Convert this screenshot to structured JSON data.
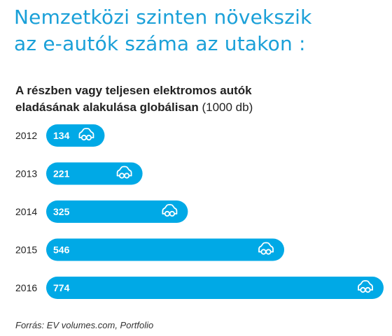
{
  "headline": {
    "line1": "Nemzetközi szinten növekszik",
    "line2": "az e-autók száma az utakon :"
  },
  "chart_data": {
    "type": "bar",
    "orientation": "horizontal",
    "title_bold_line1": "A részben vagy teljesen elektromos autók",
    "title_bold_line2": "eladásának alakulása globálisan",
    "unit": "(1000 db)",
    "categories": [
      "2012",
      "2013",
      "2014",
      "2015",
      "2016"
    ],
    "values": [
      134,
      221,
      325,
      546,
      774
    ],
    "value_labels": [
      "134",
      "221",
      "325",
      "546",
      "774"
    ],
    "bar_color": "#00a9e6",
    "text_color_on_bar": "#ffffff",
    "bar_icon": "car-front-icon",
    "grid": false,
    "legend": "none"
  },
  "source": "Forrás: EV volumes.com, Portfolio"
}
